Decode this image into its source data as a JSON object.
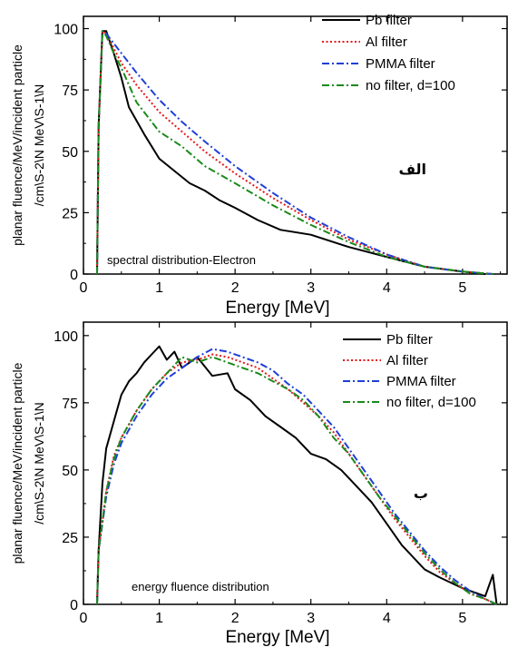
{
  "chart_data": [
    {
      "type": "line",
      "xlabel": "Energy [MeV]",
      "ylabel_line1": "planar fluence/MeV/incident particle",
      "ylabel_line2": "/cm\\S-2\\N MeV\\S-1\\N",
      "annotation": "spectral distribution-Electron",
      "panel_label": "الف",
      "xlim": [
        0,
        5.6
      ],
      "ylim": [
        0,
        105
      ],
      "xticks": [
        0,
        1,
        2,
        3,
        4,
        5
      ],
      "yticks": [
        0,
        25,
        50,
        75,
        100
      ],
      "grid": false,
      "legend_position": "top-right",
      "series": [
        {
          "name": "Pb filter",
          "color": "#000000",
          "style": "solid",
          "x": [
            0.18,
            0.2,
            0.25,
            0.3,
            0.4,
            0.5,
            0.6,
            0.8,
            1.0,
            1.2,
            1.4,
            1.6,
            1.8,
            2.0,
            2.3,
            2.6,
            3.0,
            3.5,
            4.0,
            4.5,
            5.0,
            5.3
          ],
          "y": [
            0,
            60,
            99,
            99,
            90,
            80,
            68,
            57,
            47,
            42,
            37,
            34,
            30,
            27,
            22,
            18,
            16,
            11,
            7,
            3,
            1,
            0
          ]
        },
        {
          "name": "Al filter",
          "color": "#e31a1c",
          "style": "dotted",
          "x": [
            0.18,
            0.2,
            0.25,
            0.3,
            0.4,
            0.5,
            0.7,
            1.0,
            1.3,
            1.6,
            2.0,
            2.5,
            3.0,
            3.5,
            4.0,
            4.5,
            5.0,
            5.4
          ],
          "y": [
            0,
            60,
            99,
            98,
            92,
            86,
            77,
            66,
            58,
            50,
            41,
            31,
            22,
            14,
            8,
            3,
            1,
            0
          ]
        },
        {
          "name": "PMMA filter",
          "color": "#1f3fd8",
          "style": "dashdot",
          "x": [
            0.18,
            0.2,
            0.25,
            0.3,
            0.4,
            0.5,
            0.7,
            1.0,
            1.3,
            1.6,
            2.0,
            2.5,
            3.0,
            3.5,
            4.0,
            4.5,
            5.0,
            5.4
          ],
          "y": [
            0,
            60,
            99,
            98,
            94,
            90,
            82,
            71,
            62,
            54,
            44,
            33,
            23,
            15,
            8,
            3,
            1,
            0
          ]
        },
        {
          "name": "no filter, d=100",
          "color": "#1a8a1a",
          "style": "dashdot",
          "x": [
            0.18,
            0.2,
            0.25,
            0.3,
            0.4,
            0.5,
            0.7,
            1.0,
            1.3,
            1.6,
            2.0,
            2.5,
            3.0,
            3.5,
            4.0,
            4.5,
            5.0,
            5.4
          ],
          "y": [
            0,
            60,
            99,
            97,
            90,
            84,
            70,
            58,
            52,
            44,
            37,
            28,
            20,
            13,
            7,
            3,
            1,
            0
          ]
        }
      ]
    },
    {
      "type": "line",
      "xlabel": "Energy [MeV]",
      "ylabel_line1": "planar fluence/MeV/incident particle",
      "ylabel_line2": "/cm\\S-2\\N MeV\\S-1\\N",
      "annotation": "energy fluence distribution",
      "panel_label": "ب",
      "xlim": [
        0,
        5.6
      ],
      "ylim": [
        0,
        105
      ],
      "xticks": [
        0,
        1,
        2,
        3,
        4,
        5
      ],
      "yticks": [
        0,
        25,
        50,
        75,
        100
      ],
      "grid": false,
      "legend_position": "top-right",
      "series": [
        {
          "name": "Pb filter",
          "color": "#000000",
          "style": "solid",
          "x": [
            0.18,
            0.2,
            0.25,
            0.3,
            0.4,
            0.5,
            0.6,
            0.7,
            0.8,
            0.9,
            1.0,
            1.1,
            1.2,
            1.3,
            1.5,
            1.7,
            1.9,
            2.0,
            2.2,
            2.4,
            2.6,
            2.8,
            3.0,
            3.2,
            3.4,
            3.6,
            3.8,
            4.0,
            4.2,
            4.5,
            4.7,
            5.0,
            5.3,
            5.4,
            5.45
          ],
          "y": [
            0,
            20,
            45,
            58,
            68,
            78,
            83,
            86,
            90,
            93,
            96,
            91,
            94,
            88,
            92,
            85,
            86,
            80,
            76,
            70,
            66,
            62,
            56,
            54,
            50,
            44,
            38,
            30,
            22,
            13,
            10,
            6,
            3,
            11,
            0
          ]
        },
        {
          "name": "Al filter",
          "color": "#e31a1c",
          "style": "dotted",
          "x": [
            0.18,
            0.2,
            0.3,
            0.4,
            0.5,
            0.7,
            0.9,
            1.1,
            1.3,
            1.5,
            1.7,
            1.9,
            2.1,
            2.3,
            2.5,
            2.7,
            2.9,
            3.1,
            3.3,
            3.5,
            3.7,
            3.9,
            4.1,
            4.3,
            4.5,
            4.7,
            4.9,
            5.1,
            5.3,
            5.45
          ],
          "y": [
            0,
            20,
            42,
            55,
            62,
            72,
            80,
            86,
            90,
            91,
            93,
            92,
            90,
            88,
            84,
            80,
            75,
            70,
            64,
            56,
            48,
            40,
            32,
            25,
            18,
            12,
            8,
            4,
            2,
            0
          ]
        },
        {
          "name": "PMMA filter",
          "color": "#1f3fd8",
          "style": "dashdot",
          "x": [
            0.18,
            0.2,
            0.3,
            0.4,
            0.5,
            0.7,
            0.9,
            1.1,
            1.3,
            1.5,
            1.7,
            1.9,
            2.1,
            2.3,
            2.5,
            2.7,
            2.9,
            3.1,
            3.3,
            3.5,
            3.7,
            3.9,
            4.1,
            4.3,
            4.5,
            4.7,
            4.9,
            5.1,
            5.3,
            5.45
          ],
          "y": [
            0,
            20,
            40,
            52,
            60,
            70,
            78,
            84,
            88,
            92,
            95,
            94,
            92,
            90,
            87,
            82,
            78,
            72,
            66,
            58,
            50,
            42,
            34,
            27,
            20,
            14,
            9,
            5,
            2,
            0
          ]
        },
        {
          "name": "no filter, d=100",
          "color": "#1a8a1a",
          "style": "dashdot",
          "x": [
            0.18,
            0.2,
            0.3,
            0.4,
            0.5,
            0.7,
            0.9,
            1.1,
            1.3,
            1.5,
            1.7,
            1.9,
            2.1,
            2.3,
            2.5,
            2.7,
            2.9,
            3.1,
            3.3,
            3.5,
            3.7,
            3.9,
            4.1,
            4.3,
            4.5,
            4.7,
            4.9,
            5.1,
            5.3,
            5.45
          ],
          "y": [
            0,
            20,
            42,
            54,
            62,
            72,
            80,
            86,
            92,
            90,
            92,
            90,
            88,
            86,
            83,
            80,
            76,
            70,
            62,
            56,
            48,
            40,
            33,
            26,
            19,
            13,
            8,
            4,
            2,
            0
          ]
        }
      ]
    }
  ]
}
